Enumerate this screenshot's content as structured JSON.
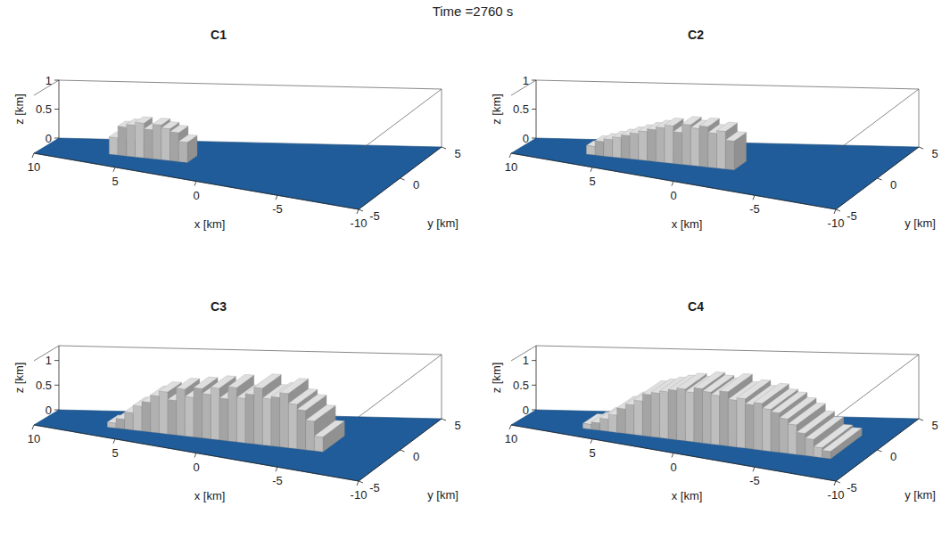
{
  "title": "Time =2760 s",
  "chart_data": [
    {
      "type": "isosurface",
      "title": "C1",
      "x_label": "x [km]",
      "y_label": "y [km]",
      "z_label": "z [km]",
      "xlim": [
        10,
        -10
      ],
      "xticks": [
        10,
        5,
        0,
        -5,
        -10
      ],
      "ylim": [
        -5,
        5
      ],
      "yticks": [
        -5,
        0,
        5
      ],
      "zlim": [
        0,
        1
      ],
      "zticks": [
        0,
        0.5,
        1
      ],
      "color": "#c8c8c8",
      "y_band": [
        -1,
        1
      ],
      "x": [
        6,
        5.5,
        5,
        4.5,
        4,
        3.5,
        3,
        2.5,
        2
      ],
      "values": [
        0.3,
        0.5,
        0.55,
        0.6,
        0.5,
        0.6,
        0.55,
        0.5,
        0.35
      ]
    },
    {
      "type": "isosurface",
      "title": "C2",
      "x_label": "x [km]",
      "y_label": "y [km]",
      "z_label": "z [km]",
      "xlim": [
        10,
        -10
      ],
      "xticks": [
        10,
        5,
        0,
        -5,
        -10
      ],
      "ylim": [
        -5,
        5
      ],
      "yticks": [
        -5,
        0,
        5
      ],
      "zlim": [
        0,
        1
      ],
      "zticks": [
        0,
        0.5,
        1
      ],
      "color": "#c8c8c8",
      "y_band": [
        -1,
        1
      ],
      "x": [
        6,
        5.5,
        5,
        4.5,
        4,
        3.5,
        3,
        2.5,
        2,
        1.5,
        1,
        0.5,
        0,
        -0.5,
        -1,
        -1.5,
        -2
      ],
      "values": [
        0.15,
        0.25,
        0.3,
        0.35,
        0.4,
        0.45,
        0.5,
        0.55,
        0.6,
        0.65,
        0.55,
        0.7,
        0.65,
        0.7,
        0.6,
        0.65,
        0.5
      ]
    },
    {
      "type": "isosurface",
      "title": "C3",
      "x_label": "x [km]",
      "y_label": "y [km]",
      "z_label": "z [km]",
      "xlim": [
        10,
        -10
      ],
      "xticks": [
        10,
        5,
        0,
        -5,
        -10
      ],
      "ylim": [
        -5,
        5
      ],
      "yticks": [
        -5,
        0,
        5
      ],
      "zlim": [
        0,
        1.3
      ],
      "zticks": [
        0,
        0.5,
        1
      ],
      "color": "#c8c8c8",
      "y_band": [
        -1.5,
        1.5
      ],
      "x": [
        6,
        5.5,
        5,
        4.5,
        4,
        3.5,
        3,
        2.5,
        2,
        1.5,
        1,
        0.5,
        0,
        -0.5,
        -1,
        -1.5,
        -2,
        -2.5,
        -3,
        -3.5,
        -4,
        -4.5,
        -5,
        -5.5,
        -6
      ],
      "values": [
        0.1,
        0.2,
        0.35,
        0.5,
        0.6,
        0.75,
        0.85,
        0.7,
        0.95,
        0.8,
        1.0,
        0.9,
        1.05,
        0.85,
        1.1,
        0.9,
        1.0,
        1.15,
        0.95,
        1.0,
        1.1,
        0.9,
        0.8,
        0.6,
        0.3
      ]
    },
    {
      "type": "isosurface",
      "title": "C4",
      "x_label": "x [km]",
      "y_label": "y [km]",
      "z_label": "z [km]",
      "xlim": [
        10,
        -10
      ],
      "xticks": [
        10,
        5,
        0,
        -5,
        -10
      ],
      "ylim": [
        -5,
        5
      ],
      "yticks": [
        -5,
        0,
        5
      ],
      "zlim": [
        0,
        1.3
      ],
      "zticks": [
        0,
        0.5,
        1
      ],
      "color": "#c8c8c8",
      "y_band": [
        -2,
        2
      ],
      "x": [
        6,
        5.5,
        5,
        4.5,
        4,
        3.5,
        3,
        2.5,
        2,
        1.5,
        1,
        0.5,
        0,
        -0.5,
        -1,
        -1.5,
        -2,
        -2.5,
        -3,
        -3.5,
        -4,
        -4.5,
        -5,
        -5.5,
        -6,
        -6.5,
        -7,
        -7.5,
        -8
      ],
      "values": [
        0.1,
        0.15,
        0.25,
        0.35,
        0.5,
        0.6,
        0.7,
        0.85,
        0.9,
        0.95,
        1.0,
        1.05,
        1.0,
        1.1,
        1.05,
        1.0,
        1.1,
        0.95,
        1.0,
        0.9,
        0.95,
        0.85,
        0.8,
        0.7,
        0.6,
        0.45,
        0.35,
        0.2,
        0.15
      ]
    }
  ]
}
